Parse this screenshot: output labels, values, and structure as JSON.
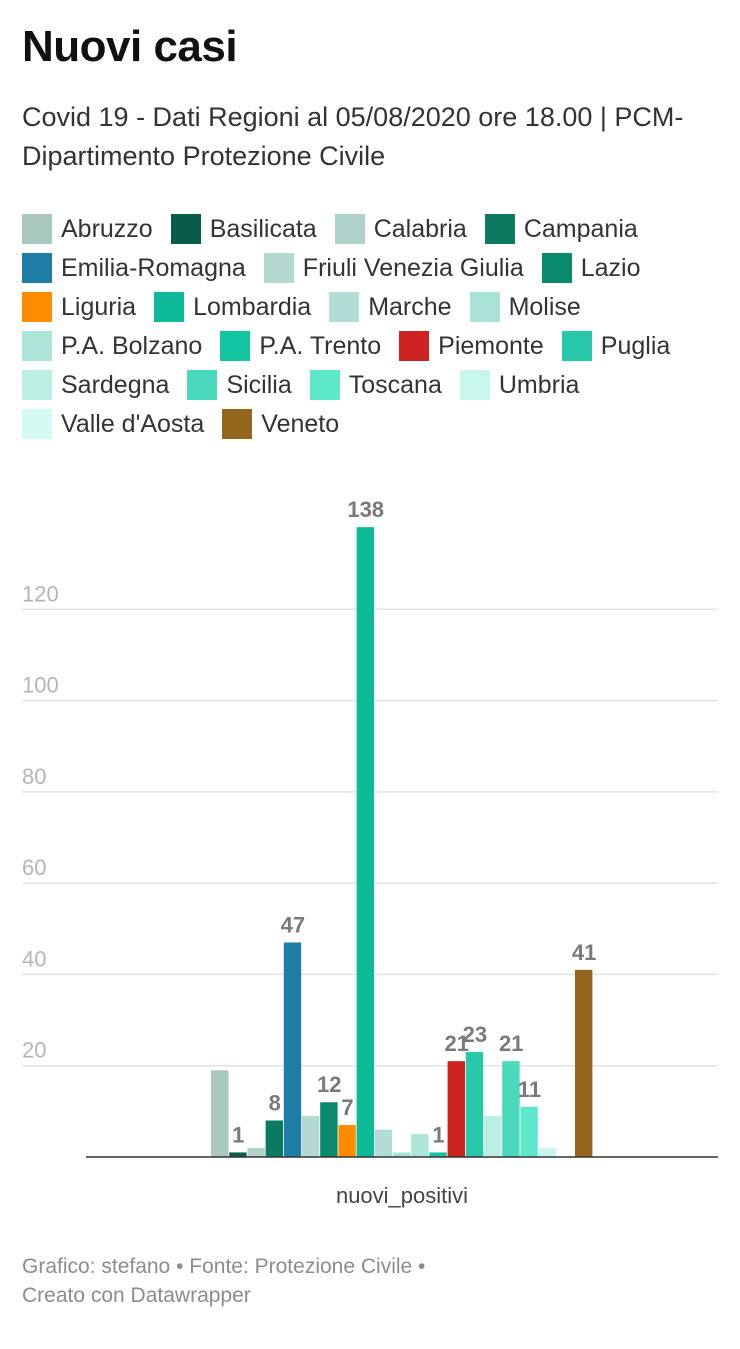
{
  "header": {
    "title": "Nuovi casi",
    "subtitle": "Covid 19 - Dati Regioni al 05/08/2020 ore 18.00 | PCM- Dipartimento Protezione Civile"
  },
  "footer": {
    "line1": "Grafico: stefano • Fonte: Protezione Civile •",
    "line2": "Creato con Datawrapper"
  },
  "chart_data": {
    "type": "bar",
    "categories": [
      "nuovi_positivi"
    ],
    "xlabel": "",
    "ylabel": "",
    "ylim": [
      0,
      140
    ],
    "yticks": [
      20,
      40,
      60,
      80,
      100,
      120
    ],
    "grid": true,
    "legend_position": "top",
    "series": [
      {
        "name": "Abruzzo",
        "color": "#a8c8c0",
        "values": [
          19
        ],
        "label": ""
      },
      {
        "name": "Basilicata",
        "color": "#0a5c4a",
        "values": [
          1
        ],
        "label": "1"
      },
      {
        "name": "Calabria",
        "color": "#aed3cb",
        "values": [
          2
        ],
        "label": ""
      },
      {
        "name": "Campania",
        "color": "#0b7a60",
        "values": [
          8
        ],
        "label": "8"
      },
      {
        "name": "Emilia-Romagna",
        "color": "#1f7ea6",
        "values": [
          47
        ],
        "label": "47"
      },
      {
        "name": "Friuli Venezia Giulia",
        "color": "#b3d9d1",
        "values": [
          9
        ],
        "label": ""
      },
      {
        "name": "Lazio",
        "color": "#0a8a6c",
        "values": [
          12
        ],
        "label": "12"
      },
      {
        "name": "Liguria",
        "color": "#ff8c00",
        "values": [
          7
        ],
        "label": "7"
      },
      {
        "name": "Lombardia",
        "color": "#0dbb99",
        "values": [
          138
        ],
        "label": "138"
      },
      {
        "name": "Marche",
        "color": "#b2ddd6",
        "values": [
          6
        ],
        "label": ""
      },
      {
        "name": "Molise",
        "color": "#a9e3d8",
        "values": [
          1
        ],
        "label": ""
      },
      {
        "name": "P.A. Bolzano",
        "color": "#ace5da",
        "values": [
          5
        ],
        "label": ""
      },
      {
        "name": "P.A. Trento",
        "color": "#12c4a0",
        "values": [
          1
        ],
        "label": "1"
      },
      {
        "name": "Piemonte",
        "color": "#cf2222",
        "values": [
          21
        ],
        "label": "21"
      },
      {
        "name": "Puglia",
        "color": "#27c9aa",
        "values": [
          23
        ],
        "label": "23"
      },
      {
        "name": "Sardegna",
        "color": "#bdeee3",
        "values": [
          9
        ],
        "label": ""
      },
      {
        "name": "Sicilia",
        "color": "#4ad9bc",
        "values": [
          21
        ],
        "label": "21"
      },
      {
        "name": "Toscana",
        "color": "#5ee8cb",
        "values": [
          11
        ],
        "label": "11"
      },
      {
        "name": "Umbria",
        "color": "#c6f6ec",
        "values": [
          2
        ],
        "label": ""
      },
      {
        "name": "Valle d'Aosta",
        "color": "#d4fbf3",
        "values": [
          0
        ],
        "label": ""
      },
      {
        "name": "Veneto",
        "color": "#93661c",
        "values": [
          41
        ],
        "label": "41"
      }
    ]
  }
}
